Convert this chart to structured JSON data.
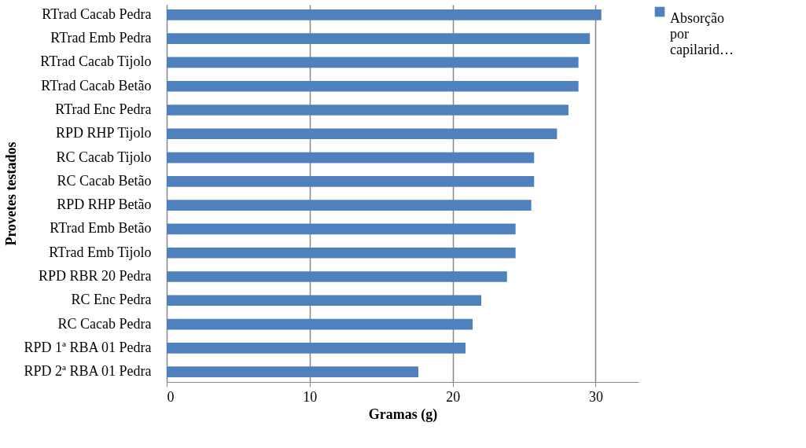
{
  "chart_data": {
    "type": "bar",
    "orientation": "horizontal",
    "xlabel": "Gramas (g)",
    "ylabel": "Provetes testados",
    "categories": [
      "RTrad Cacab Pedra",
      "RTrad Emb Pedra",
      "RTrad Cacab Tijolo",
      "RTrad Cacab Betão",
      "RTrad Enc Pedra",
      "RPD RHP Tijolo",
      "RC Cacab Tijolo",
      "RC Cacab Betão",
      "RPD RHP Betão",
      "RTrad Emb Betão",
      "RTrad Emb Tijolo",
      "RPD RBR 20 Pedra",
      "RC Enc Pedra",
      "RC Cacab Pedra",
      "RPD 1ª RBA 01 Pedra",
      "RPD 2ª RBA 01 Pedra"
    ],
    "series": [
      {
        "name": "Absorção por capilarid…",
        "color": "#4f81bd",
        "values": [
          30.4,
          29.6,
          28.8,
          28.8,
          28.1,
          27.3,
          25.7,
          25.7,
          25.5,
          24.4,
          24.4,
          23.8,
          22.0,
          21.4,
          20.9,
          17.6
        ]
      }
    ],
    "xlim": [
      0,
      33
    ],
    "xticks": [
      0,
      10,
      20,
      30
    ],
    "grid": "x",
    "legend": "right"
  }
}
